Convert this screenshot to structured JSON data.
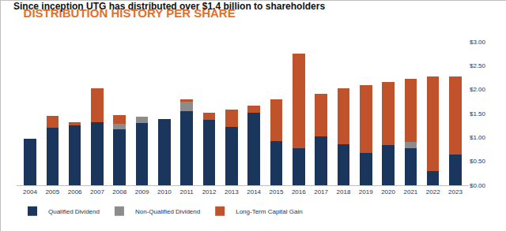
{
  "chart_data": {
    "type": "bar",
    "title": "DISTRIBUTION HISTORY PER SHARE",
    "subtitle": "Since inception UTG has distributed over $1.4 billion to shareholders",
    "categories": [
      "2004",
      "2005",
      "2006",
      "2007",
      "2008",
      "2009",
      "2010",
      "2011",
      "2012",
      "2013",
      "2014",
      "2015",
      "2016",
      "2017",
      "2018",
      "2019",
      "2020",
      "2021",
      "2022",
      "2023"
    ],
    "series": [
      {
        "name": "Qualified Dividend",
        "color": "#1b365d",
        "values": [
          0.97,
          1.2,
          1.25,
          1.32,
          1.17,
          1.3,
          1.38,
          1.55,
          1.37,
          1.22,
          1.52,
          0.92,
          0.78,
          1.03,
          0.86,
          0.67,
          0.84,
          0.78,
          0.29,
          0.65
        ]
      },
      {
        "name": "Non-Qualified Dividend",
        "color": "#8c8c8c",
        "values": [
          0,
          0,
          0,
          0,
          0.12,
          0.14,
          0,
          0.2,
          0,
          0,
          0,
          0,
          0,
          0,
          0,
          0,
          0,
          0.12,
          0,
          0
        ]
      },
      {
        "name": "Long-Term Capital Gain",
        "color": "#c0532b",
        "values": [
          0,
          0.25,
          0.07,
          0.71,
          0.18,
          0,
          0,
          0.05,
          0.15,
          0.36,
          0.14,
          0.88,
          1.98,
          0.89,
          1.16,
          1.43,
          1.32,
          1.32,
          1.99,
          1.63
        ]
      }
    ],
    "stacked": true,
    "ylim": [
      0,
      3
    ],
    "yticks": [
      {
        "value": 0,
        "label": "$0.00"
      },
      {
        "value": 0.5,
        "label": "$0.50"
      },
      {
        "value": 1,
        "label": "$1.00"
      },
      {
        "value": 1.5,
        "label": "$1.50"
      },
      {
        "value": 2,
        "label": "$2.00"
      },
      {
        "value": 2.5,
        "label": "$2.50"
      },
      {
        "value": 3,
        "label": "$3.00"
      }
    ],
    "grid": false,
    "legend": "bottom left"
  }
}
